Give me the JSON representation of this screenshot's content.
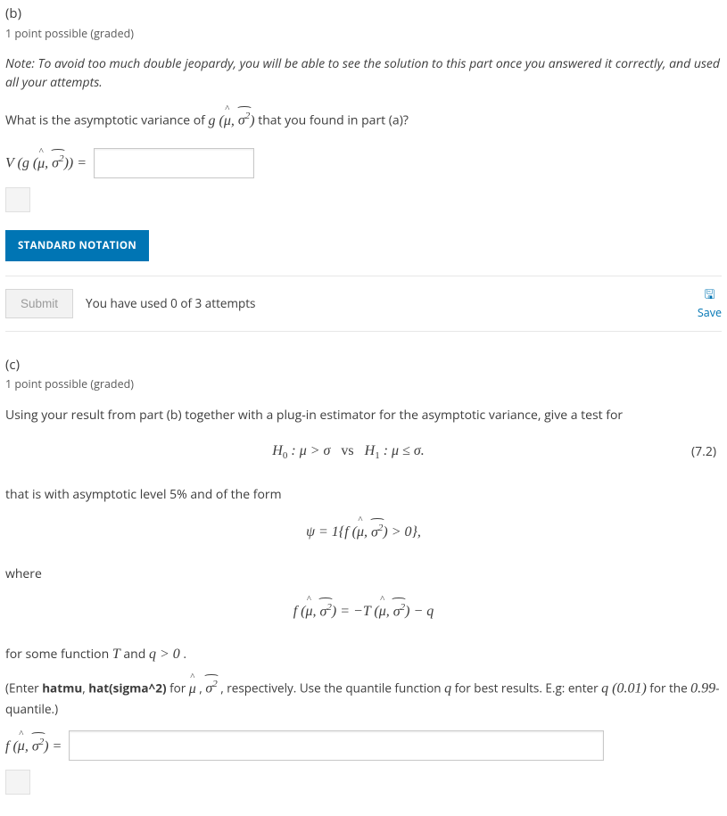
{
  "colors": {
    "accent": "#0075b4",
    "text": "#3c3c3c",
    "muted": "#5a5a5a",
    "border": "#e7e7e7",
    "input_border": "#c8c8c8",
    "disabled_bg": "#f2f2f2",
    "disabled_text": "#9b9b9b"
  },
  "partB": {
    "label": "(b)",
    "points": "1 point possible (graded)",
    "note": "Note: To avoid too much double jeopardy, you will be able to see the solution to this part once you answered it correctly, and used all your attempts.",
    "prompt_pre": "What is the asymptotic variance of ",
    "prompt_post": " that you found in part (a)?",
    "lhs_pre": "V (g (",
    "lhs_post": ")) =",
    "input_value": "",
    "tag_button": "STANDARD NOTATION",
    "submit": "Submit",
    "attempts": "You have used 0 of 3 attempts",
    "save": "Save"
  },
  "partC": {
    "label": "(c)",
    "points": "1 point possible (graded)",
    "prompt": "Using your result from part (b) together with a plug-in estimator for the asymptotic variance, give a test for",
    "hypothesis": "H₀ : μ > σ   vs   H₁ : μ ≤ σ.",
    "eq_number": "(7.2)",
    "line2": "that is with asymptotic level 5% and of the form",
    "psi_pre": "ψ = 1{f (",
    "psi_post": ") > 0},",
    "where": "where",
    "f_def_pre": "f (",
    "f_def_mid": ") = −T (",
    "f_def_post": ") − q",
    "line3_pre": "for some function ",
    "line3_T": "T",
    "line3_mid": " and ",
    "line3_q": "q > 0",
    "line3_post": " .",
    "instr_pre": "(Enter ",
    "instr_b1": "hatmu",
    "instr_sep": ", ",
    "instr_b2": "hat(sigma^2)",
    "instr_mid1": " for ",
    "instr_mid2": " , respectively. Use the quantile function ",
    "instr_q": "q",
    "instr_mid3": " for best results. E.g: enter ",
    "instr_ex1": "q (0.01)",
    "instr_mid4": " for the ",
    "instr_ex2": "0.99",
    "instr_end": "-quantile.)",
    "lhs_pre": "f (",
    "lhs_post": ") =",
    "input_value": ""
  },
  "math_tokens": {
    "muhat": "μ",
    "sigma2hat": "σ",
    "sigma_exp": "2"
  }
}
